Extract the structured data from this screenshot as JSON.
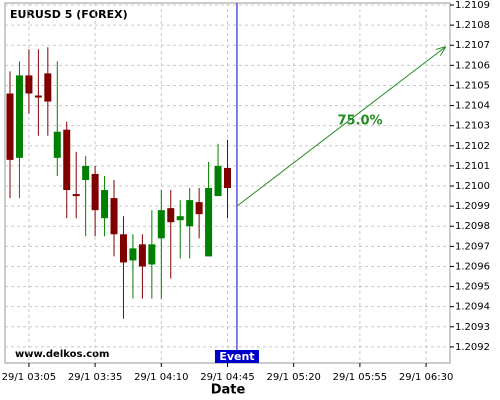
{
  "chart_data": {
    "type": "candlestick",
    "title": "EURUSD 5 (FOREX)",
    "x_label": "Date",
    "watermark": "www.delkos.com",
    "categories": [
      null,
      null,
      "29/1 03:05",
      null,
      null,
      null,
      null,
      null,
      null,
      "29/1 03:35",
      null,
      null,
      null,
      null,
      null,
      null,
      "29/1 04:10",
      null,
      null,
      null,
      null,
      null,
      null,
      "29/1 04:45",
      null,
      null,
      null,
      null,
      null,
      null,
      "29/1 05:20",
      null,
      null,
      null,
      null,
      null,
      null,
      "29/1 05:55",
      null,
      null,
      null,
      null,
      null,
      null,
      "29/1 06:30",
      null,
      null
    ],
    "open": [
      1.21046,
      1.21014,
      1.21055,
      1.21045,
      1.21056,
      1.21014,
      1.21028,
      1.20996,
      1.21003,
      1.21006,
      1.20984,
      1.20994,
      1.20976,
      1.20963,
      1.20971,
      1.20961,
      1.20974,
      1.20989,
      1.20983,
      1.2098,
      1.20992,
      1.20965,
      1.20995,
      1.21009,
      null,
      null,
      null,
      null,
      null,
      null,
      null,
      null,
      null,
      null,
      null,
      null,
      null,
      null,
      null,
      null,
      null,
      null,
      null,
      null,
      null,
      null,
      null
    ],
    "high": [
      1.21057,
      1.21062,
      1.21068,
      1.21068,
      1.21069,
      1.21062,
      1.21032,
      1.21017,
      1.21015,
      1.2101,
      1.21005,
      1.21003,
      1.20985,
      1.20976,
      1.20976,
      1.20988,
      1.20998,
      1.20998,
      1.20993,
      1.20999,
      1.20999,
      1.21012,
      1.21021,
      1.21023,
      null,
      null,
      null,
      null,
      null,
      null,
      null,
      null,
      null,
      null,
      null,
      null,
      null,
      null,
      null,
      null,
      null,
      null,
      null,
      null,
      null,
      null,
      null
    ],
    "low": [
      1.20994,
      1.20994,
      1.21036,
      1.21025,
      1.21025,
      1.21005,
      1.20984,
      1.20984,
      1.20975,
      1.20975,
      1.20975,
      1.20965,
      1.20934,
      1.20944,
      1.20944,
      1.20944,
      1.20944,
      1.20954,
      1.20964,
      1.20964,
      1.20974,
      1.20965,
      1.20995,
      1.20984,
      null,
      null,
      null,
      null,
      null,
      null,
      null,
      null,
      null,
      null,
      null,
      null,
      null,
      null,
      null,
      null,
      null,
      null,
      null,
      null,
      null,
      null,
      null
    ],
    "close": [
      1.21013,
      1.21055,
      1.21046,
      1.21044,
      1.21042,
      1.21027,
      1.20998,
      1.20995,
      1.2101,
      1.20988,
      1.20998,
      1.20976,
      1.20962,
      1.20969,
      1.2096,
      1.20971,
      1.20988,
      1.20982,
      1.20985,
      1.20993,
      1.20986,
      1.20999,
      1.2101,
      1.20999,
      null,
      null,
      null,
      null,
      null,
      null,
      null,
      null,
      null,
      null,
      null,
      null,
      null,
      null,
      null,
      null,
      null,
      null,
      null,
      null,
      null,
      null,
      null
    ],
    "up_color": "#008000",
    "down_color": "#800000",
    "ylim": [
      1.20912,
      1.21091
    ],
    "yticks": [
      1.2092,
      1.2093,
      1.2094,
      1.2095,
      1.2096,
      1.2097,
      1.2098,
      1.2099,
      {
        "value": 1.21,
        "label": "1.2100"
      },
      1.2101,
      1.2102,
      1.2103,
      1.2104,
      1.2105,
      1.2106,
      1.2107,
      1.2108,
      1.2109
    ],
    "grid": true,
    "event": {
      "label": "Event",
      "index": 24,
      "color": "#0000cc"
    },
    "projection": {
      "label": "75.0%",
      "from": 1.2099,
      "to": 1.21069,
      "color": "#228b22"
    }
  }
}
